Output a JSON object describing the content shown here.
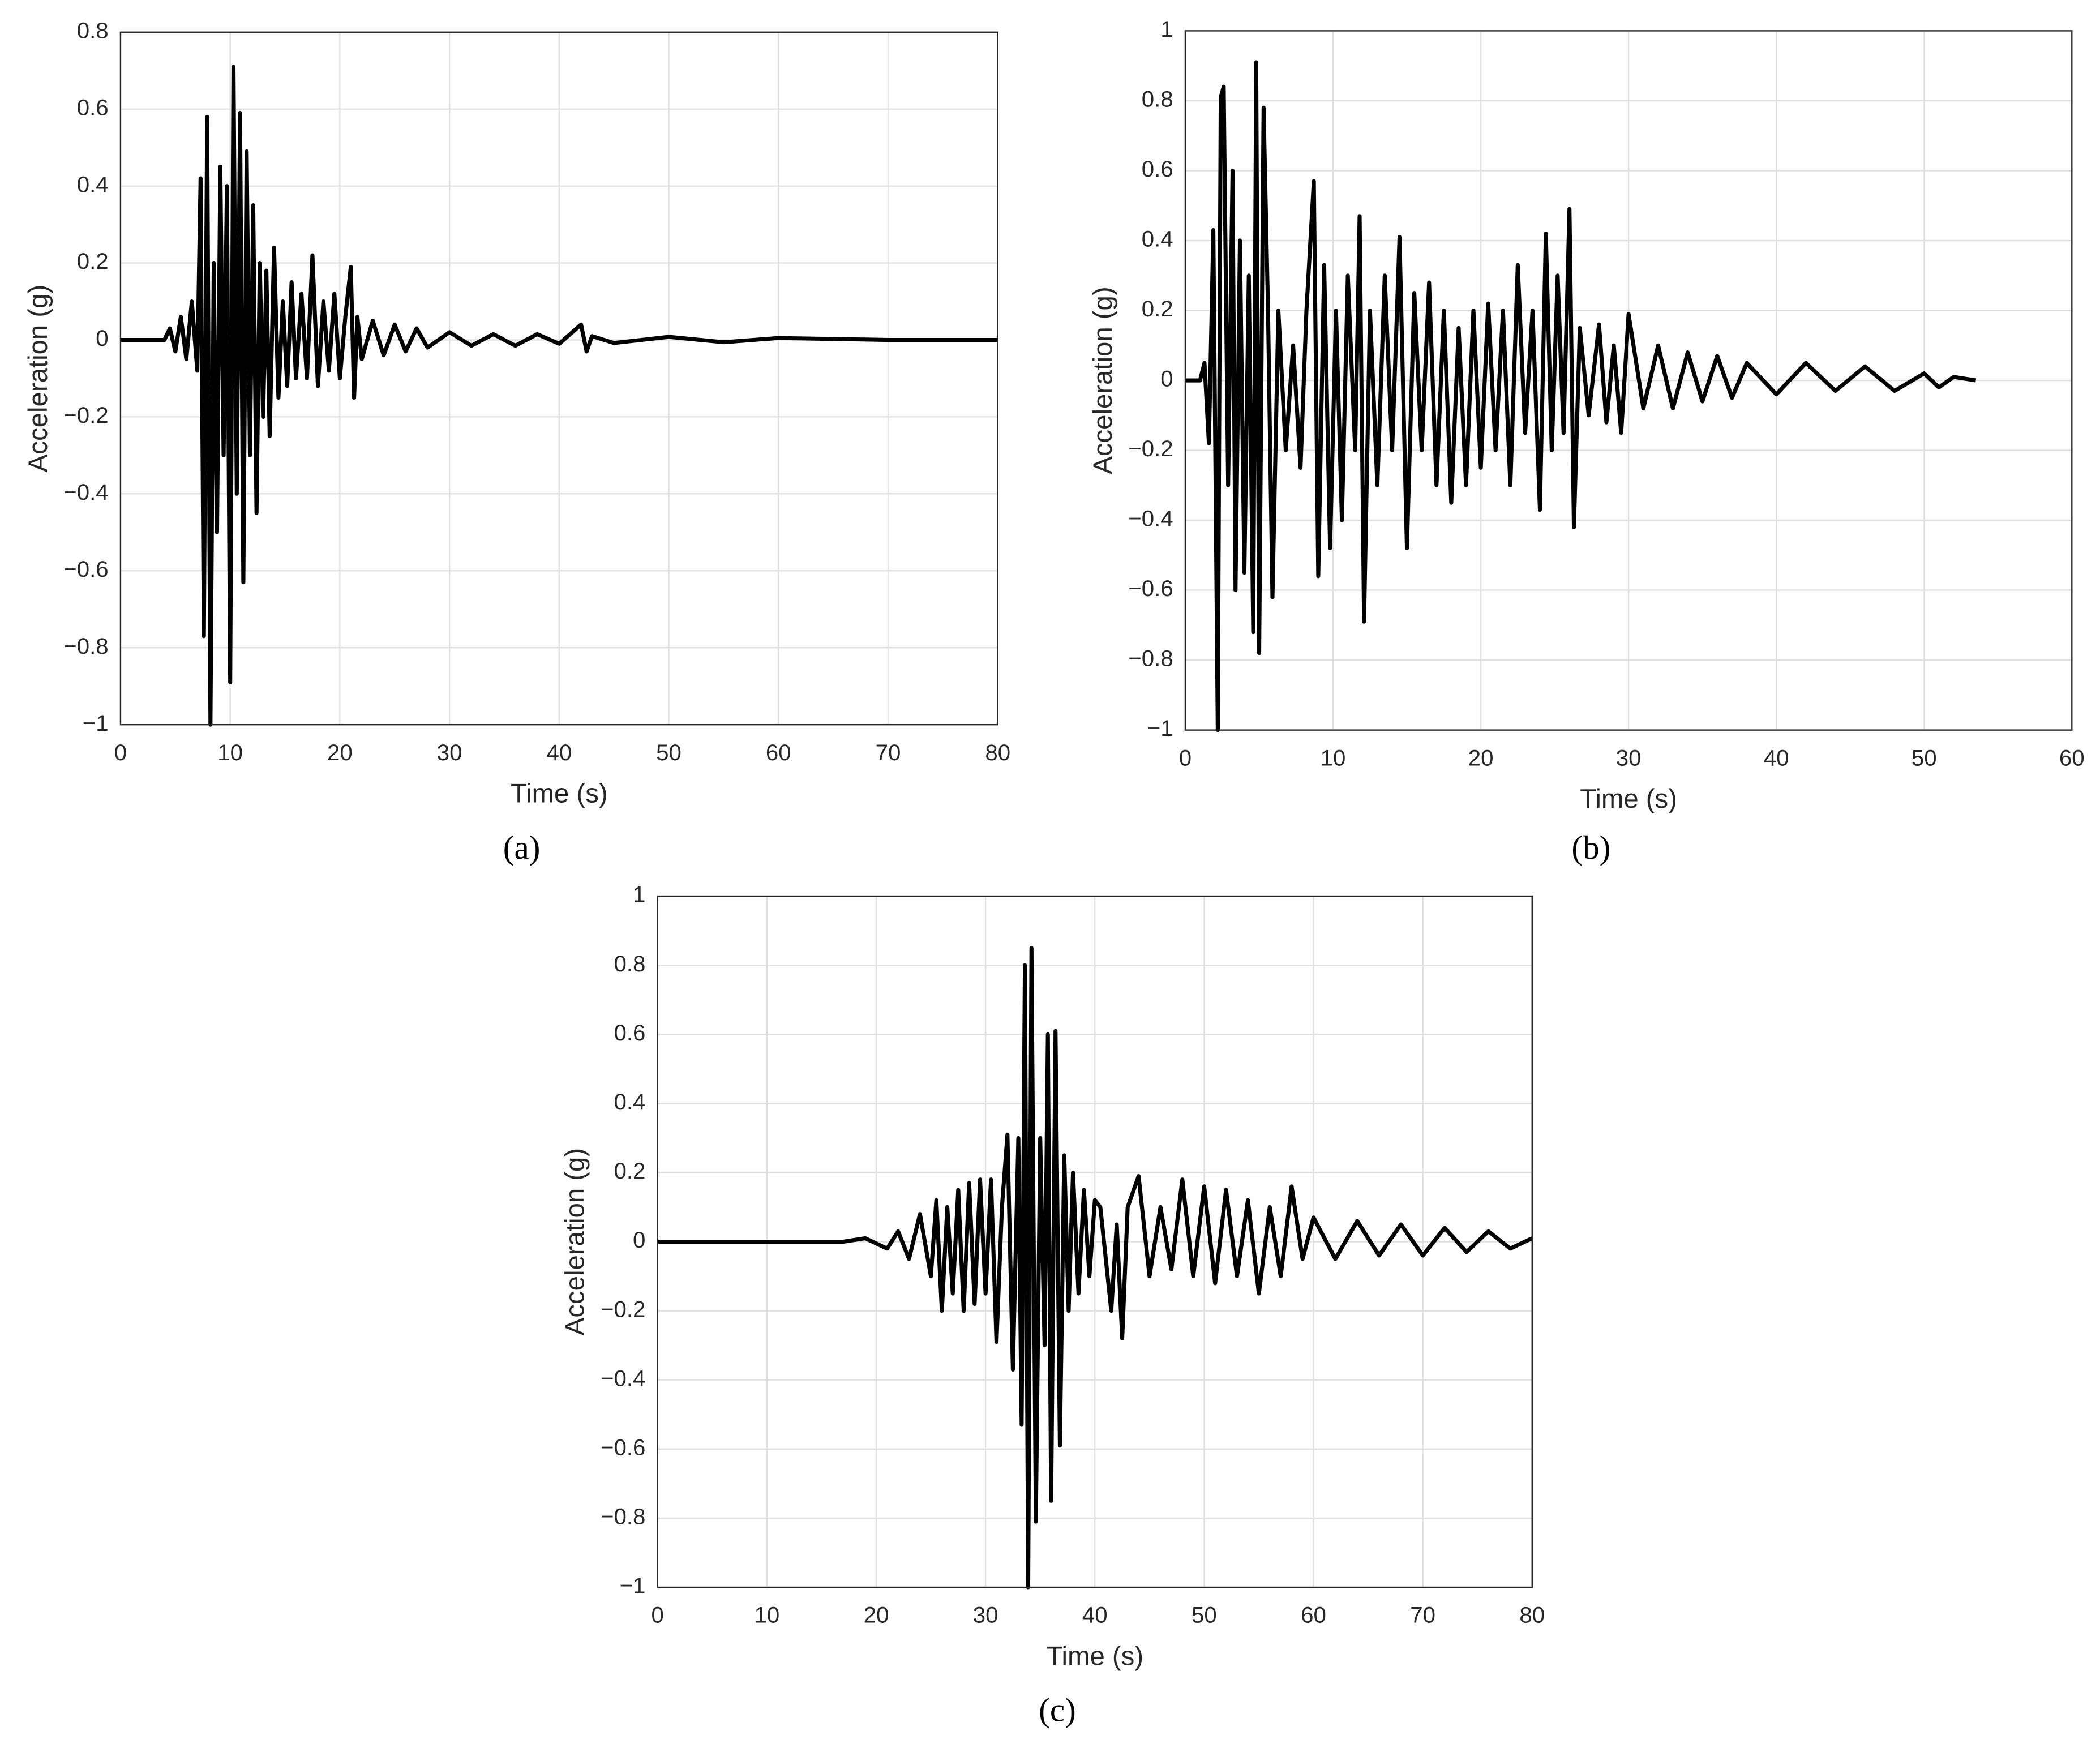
{
  "chart_data": [
    {
      "type": "line",
      "label": "(a)",
      "xlabel": "Time (s)",
      "ylabel": "Acceleration (g)",
      "color": "#000000",
      "grid": true,
      "xlim": [
        0,
        80
      ],
      "xticks": [
        0,
        10,
        20,
        30,
        40,
        50,
        60,
        70,
        80
      ],
      "ylim": [
        -1,
        0.8
      ],
      "yticks": [
        {
          "value": -1,
          "label": "−1"
        },
        {
          "value": -0.8,
          "label": "−0.8"
        },
        {
          "value": -0.6,
          "label": "−0.6"
        },
        {
          "value": -0.4,
          "label": "−0.4"
        },
        {
          "value": -0.2,
          "label": "−0.2"
        },
        0,
        0.2,
        0.4,
        0.6,
        0.8
      ],
      "x": [
        0,
        4,
        4.5,
        5,
        5.5,
        6,
        6.5,
        7,
        7.3,
        7.6,
        7.9,
        8.2,
        8.5,
        8.8,
        9.1,
        9.4,
        9.7,
        10,
        10.3,
        10.6,
        10.9,
        11.2,
        11.5,
        11.8,
        12.1,
        12.4,
        12.7,
        13,
        13.3,
        13.6,
        14,
        14.4,
        14.8,
        15.2,
        15.6,
        16,
        16.5,
        17,
        17.5,
        18,
        18.5,
        19,
        19.5,
        20,
        20.5,
        21,
        21.3,
        21.6,
        22,
        23,
        24,
        25,
        26,
        27,
        28,
        30,
        32,
        34,
        36,
        38,
        40,
        42,
        42.5,
        43,
        45,
        50,
        55,
        60,
        70,
        80
      ],
      "values": [
        0,
        0,
        0.03,
        -0.03,
        0.06,
        -0.05,
        0.1,
        -0.08,
        0.42,
        -0.77,
        0.58,
        -1,
        0.2,
        -0.5,
        0.45,
        -0.3,
        0.4,
        -0.89,
        0.71,
        -0.4,
        0.59,
        -0.63,
        0.49,
        -0.3,
        0.35,
        -0.45,
        0.2,
        -0.2,
        0.18,
        -0.25,
        0.24,
        -0.15,
        0.1,
        -0.12,
        0.15,
        -0.1,
        0.12,
        -0.1,
        0.22,
        -0.12,
        0.1,
        -0.08,
        0.12,
        -0.1,
        0.06,
        0.19,
        -0.15,
        0.06,
        -0.05,
        0.05,
        -0.04,
        0.04,
        -0.03,
        0.03,
        -0.02,
        0.02,
        -0.015,
        0.015,
        -0.015,
        0.015,
        -0.01,
        0.04,
        -0.03,
        0.01,
        -0.008,
        0.008,
        -0.006,
        0.005,
        0,
        0
      ]
    },
    {
      "type": "line",
      "label": "(b)",
      "xlabel": "Time (s)",
      "ylabel": "Acceleration (g)",
      "color": "#000000",
      "grid": true,
      "xlim": [
        0,
        60
      ],
      "xticks": [
        0,
        10,
        20,
        30,
        40,
        50,
        60
      ],
      "ylim": [
        -1,
        1
      ],
      "yticks": [
        {
          "value": -1,
          "label": "−1"
        },
        {
          "value": -0.8,
          "label": "−0.8"
        },
        {
          "value": -0.6,
          "label": "−0.6"
        },
        {
          "value": -0.4,
          "label": "−0.4"
        },
        {
          "value": -0.2,
          "label": "−0.2"
        },
        0,
        0.2,
        0.4,
        0.6,
        0.8,
        1
      ],
      "x": [
        0,
        1,
        1.3,
        1.6,
        1.9,
        2.2,
        2.4,
        2.6,
        2.9,
        3.2,
        3.4,
        3.7,
        4,
        4.3,
        4.6,
        4.8,
        5,
        5.3,
        5.6,
        5.9,
        6.3,
        6.8,
        7.3,
        7.8,
        8.2,
        8.7,
        9,
        9.4,
        9.8,
        10.2,
        10.6,
        11,
        11.5,
        11.8,
        12.1,
        12.5,
        13,
        13.5,
        14,
        14.5,
        15,
        15.5,
        16,
        16.5,
        17,
        17.5,
        18,
        18.5,
        19,
        19.5,
        20,
        20.5,
        21,
        21.5,
        22,
        22.5,
        23,
        23.5,
        24,
        24.4,
        24.8,
        25.2,
        25.6,
        26,
        26.3,
        26.7,
        27.3,
        28,
        28.5,
        29,
        29.5,
        30,
        31,
        32,
        33,
        34,
        35,
        36,
        37,
        38,
        40,
        42,
        44,
        46,
        48,
        50,
        51,
        52,
        53.5
      ],
      "values": [
        0,
        0,
        0.05,
        -0.18,
        0.43,
        -1,
        0.81,
        0.84,
        -0.3,
        0.6,
        -0.6,
        0.4,
        -0.55,
        0.3,
        -0.72,
        0.91,
        -0.78,
        0.78,
        0.2,
        -0.62,
        0.2,
        -0.2,
        0.1,
        -0.25,
        0.2,
        0.57,
        -0.56,
        0.33,
        -0.48,
        0.2,
        -0.4,
        0.3,
        -0.2,
        0.47,
        -0.69,
        0.2,
        -0.3,
        0.3,
        -0.2,
        0.41,
        -0.48,
        0.25,
        -0.2,
        0.28,
        -0.3,
        0.2,
        -0.35,
        0.15,
        -0.3,
        0.2,
        -0.25,
        0.22,
        -0.2,
        0.2,
        -0.3,
        0.33,
        -0.15,
        0.2,
        -0.37,
        0.42,
        -0.2,
        0.3,
        -0.15,
        0.49,
        -0.42,
        0.15,
        -0.1,
        0.16,
        -0.12,
        0.1,
        -0.15,
        0.19,
        -0.08,
        0.1,
        -0.08,
        0.08,
        -0.06,
        0.07,
        -0.05,
        0.05,
        -0.04,
        0.05,
        -0.03,
        0.04,
        -0.03,
        0.02,
        -0.02,
        0.01,
        0
      ]
    },
    {
      "type": "line",
      "label": "(c)",
      "xlabel": "Time (s)",
      "ylabel": "Acceleration (g)",
      "color": "#000000",
      "grid": true,
      "xlim": [
        0,
        80
      ],
      "xticks": [
        0,
        10,
        20,
        30,
        40,
        50,
        60,
        70,
        80
      ],
      "ylim": [
        -1,
        1
      ],
      "yticks": [
        {
          "value": -1,
          "label": "−1"
        },
        {
          "value": -0.8,
          "label": "−0.8"
        },
        {
          "value": -0.6,
          "label": "−0.6"
        },
        {
          "value": -0.4,
          "label": "−0.4"
        },
        {
          "value": -0.2,
          "label": "−0.2"
        },
        0,
        0.2,
        0.4,
        0.6,
        0.8,
        1
      ],
      "x": [
        0,
        17,
        19,
        21,
        22,
        23,
        24,
        25,
        25.5,
        26,
        26.5,
        27,
        27.5,
        28,
        28.5,
        29,
        29.5,
        30,
        30.5,
        31,
        31.5,
        32,
        32.5,
        33,
        33.3,
        33.6,
        33.9,
        34.2,
        34.6,
        35,
        35.4,
        35.7,
        36,
        36.4,
        36.8,
        37.2,
        37.6,
        38,
        38.5,
        39,
        39.5,
        40,
        40.5,
        41,
        41.5,
        42,
        42.5,
        43,
        44,
        45,
        46,
        47,
        48,
        49,
        50,
        51,
        52,
        53,
        54,
        55,
        56,
        57,
        58,
        59,
        60,
        62,
        64,
        66,
        68,
        70,
        72,
        74,
        76,
        78,
        80
      ],
      "values": [
        0,
        0,
        0.01,
        -0.02,
        0.03,
        -0.05,
        0.08,
        -0.1,
        0.12,
        -0.2,
        0.1,
        -0.15,
        0.15,
        -0.2,
        0.17,
        -0.18,
        0.18,
        -0.15,
        0.18,
        -0.29,
        0.1,
        0.31,
        -0.37,
        0.3,
        -0.53,
        0.8,
        -1,
        0.85,
        -0.81,
        0.3,
        -0.3,
        0.6,
        -0.75,
        0.61,
        -0.59,
        0.25,
        -0.2,
        0.2,
        -0.15,
        0.15,
        -0.1,
        0.12,
        0.1,
        -0.05,
        -0.2,
        0.05,
        -0.28,
        0.1,
        0.19,
        -0.1,
        0.1,
        -0.08,
        0.18,
        -0.1,
        0.16,
        -0.12,
        0.15,
        -0.1,
        0.12,
        -0.15,
        0.1,
        -0.1,
        0.16,
        -0.05,
        0.07,
        -0.05,
        0.06,
        -0.04,
        0.05,
        -0.04,
        0.04,
        -0.03,
        0.03,
        -0.02,
        0.01
      ]
    }
  ]
}
